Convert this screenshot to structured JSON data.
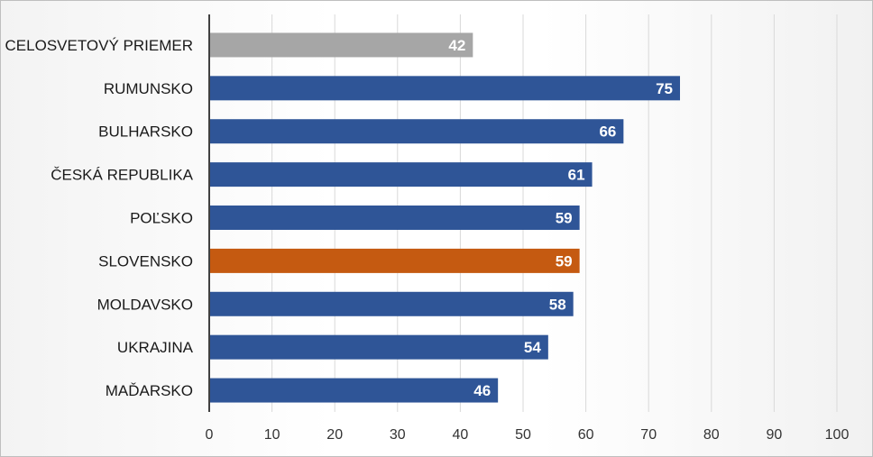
{
  "chart_data": {
    "type": "bar",
    "orientation": "horizontal",
    "title": "",
    "xlabel": "",
    "ylabel": "",
    "xlim": [
      0,
      100
    ],
    "ticks": [
      0,
      10,
      20,
      30,
      40,
      50,
      60,
      70,
      80,
      90,
      100
    ],
    "grid": true,
    "legend": "none",
    "categories": [
      "CELOSVETOVÝ PRIEMER",
      "RUMUNSKO",
      "BULHARSKO",
      "ČESKÁ REPUBLIKA",
      "POĽSKO",
      "SLOVENSKO",
      "MOLDAVSKO",
      "UKRAJINA",
      "MAĎARSKO"
    ],
    "values": [
      42,
      75,
      66,
      61,
      59,
      59,
      58,
      54,
      46
    ],
    "bar_colors": [
      "#a6a6a6",
      "#2f5597",
      "#2f5597",
      "#2f5597",
      "#2f5597",
      "#c55a11",
      "#2f5597",
      "#2f5597",
      "#2f5597"
    ],
    "data_label_color": "#ffffff",
    "gridline_color": "#d9d9d9",
    "axis_color": "#404040"
  }
}
